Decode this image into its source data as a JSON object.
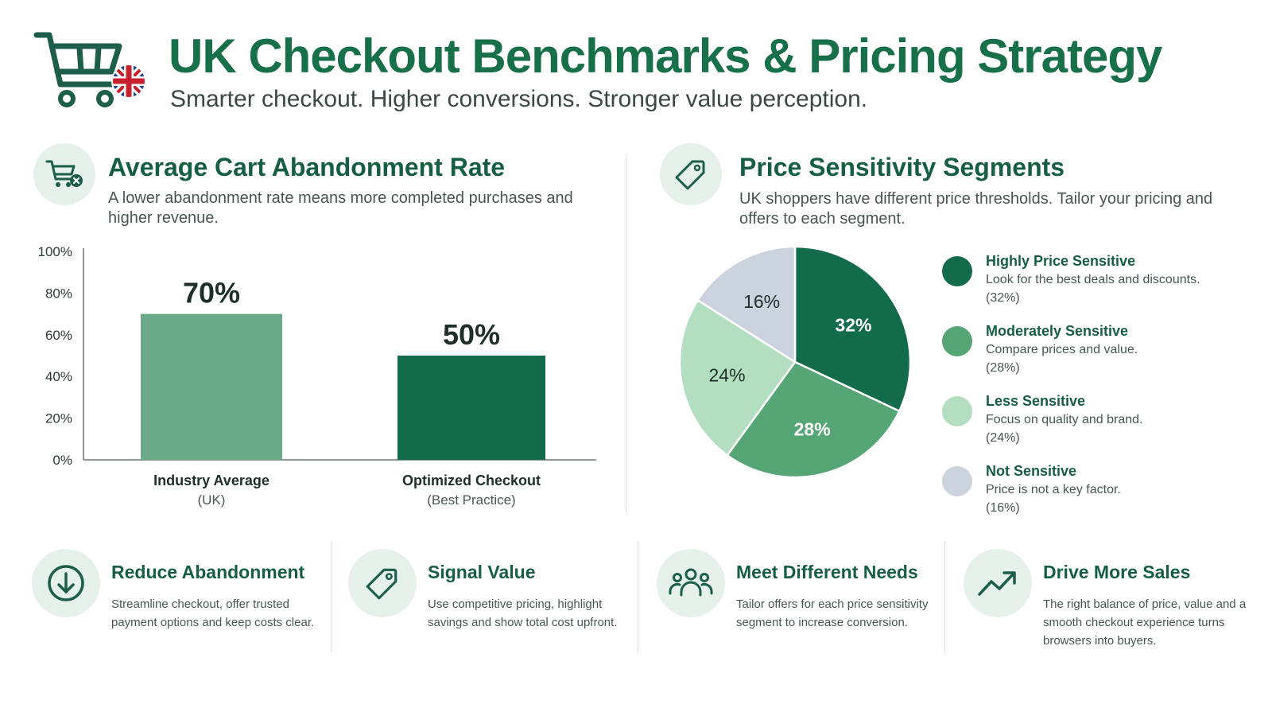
{
  "header": {
    "title": "UK Checkout Benchmarks & Pricing Strategy",
    "subtitle": "Smarter checkout. Higher conversions. Stronger value perception."
  },
  "colors": {
    "brand_green": "#17704a",
    "dark_green": "#126b4a",
    "mid_green": "#55a674",
    "light_green": "#b3dfc0",
    "muted_green": "#6aa98a",
    "grey_blue": "#cbd3de",
    "icon_bg": "#e6f1ec"
  },
  "left_panel": {
    "icon": "cart-x-icon",
    "title": "Average Cart Abandonment Rate",
    "description": "A lower abandonment rate means more completed purchases and higher revenue."
  },
  "right_panel": {
    "icon": "price-tag-icon",
    "title": "Price Sensitivity Segments",
    "description": "UK shoppers have different price thresholds. Tailor your pricing and offers to each segment."
  },
  "chart_data": [
    {
      "type": "bar",
      "categories": [
        "Industry Average",
        "Optimized Checkout"
      ],
      "category_sublabels": [
        "(UK)",
        "(Best Practice)"
      ],
      "values": [
        70,
        50
      ],
      "data_labels": [
        "70%",
        "50%"
      ],
      "colors": [
        "#6aa98a",
        "#126b4a"
      ],
      "ylim": [
        0,
        100
      ],
      "yticks": [
        0,
        20,
        40,
        60,
        80,
        100
      ],
      "ytick_labels": [
        "0%",
        "20%",
        "40%",
        "60%",
        "80%",
        "100%"
      ],
      "grid": false
    },
    {
      "type": "pie",
      "labels": [
        "Highly Price Sensitive",
        "Moderately Sensitive",
        "Less Sensitive",
        "Not Sensitive"
      ],
      "values": [
        32,
        28,
        24,
        16
      ],
      "data_labels": [
        "32%",
        "28%",
        "24%",
        "16%"
      ],
      "colors": [
        "#126b4a",
        "#55a674",
        "#b3dfc0",
        "#cbd3de"
      ],
      "legend_position": "right"
    }
  ],
  "legend": [
    {
      "title": "Highly Price Sensitive",
      "desc": "Look for the best deals and discounts.",
      "pct": "(32%)",
      "color": "#126b4a"
    },
    {
      "title": "Moderately Sensitive",
      "desc": "Compare prices and value.",
      "pct": "(28%)",
      "color": "#55a674"
    },
    {
      "title": "Less Sensitive",
      "desc": "Focus on quality and brand.",
      "pct": "(24%)",
      "color": "#b3dfc0"
    },
    {
      "title": "Not Sensitive",
      "desc": "Price is not a key factor.",
      "pct": "(16%)",
      "color": "#cbd3de"
    }
  ],
  "cards": [
    {
      "icon": "download-arrow-icon",
      "title": "Reduce Abandonment",
      "desc": "Streamline checkout, offer trusted payment options and keep costs clear."
    },
    {
      "icon": "price-tag-icon",
      "title": "Signal Value",
      "desc": "Use competitive pricing, highlight savings and show total cost upfront."
    },
    {
      "icon": "users-group-icon",
      "title": "Meet Different Needs",
      "desc": "Tailor offers for each price sensitivity segment to increase conversion."
    },
    {
      "icon": "trend-up-icon",
      "title": "Drive More Sales",
      "desc": "The right balance of price, value and a smooth checkout experience turns browsers into buyers."
    }
  ]
}
